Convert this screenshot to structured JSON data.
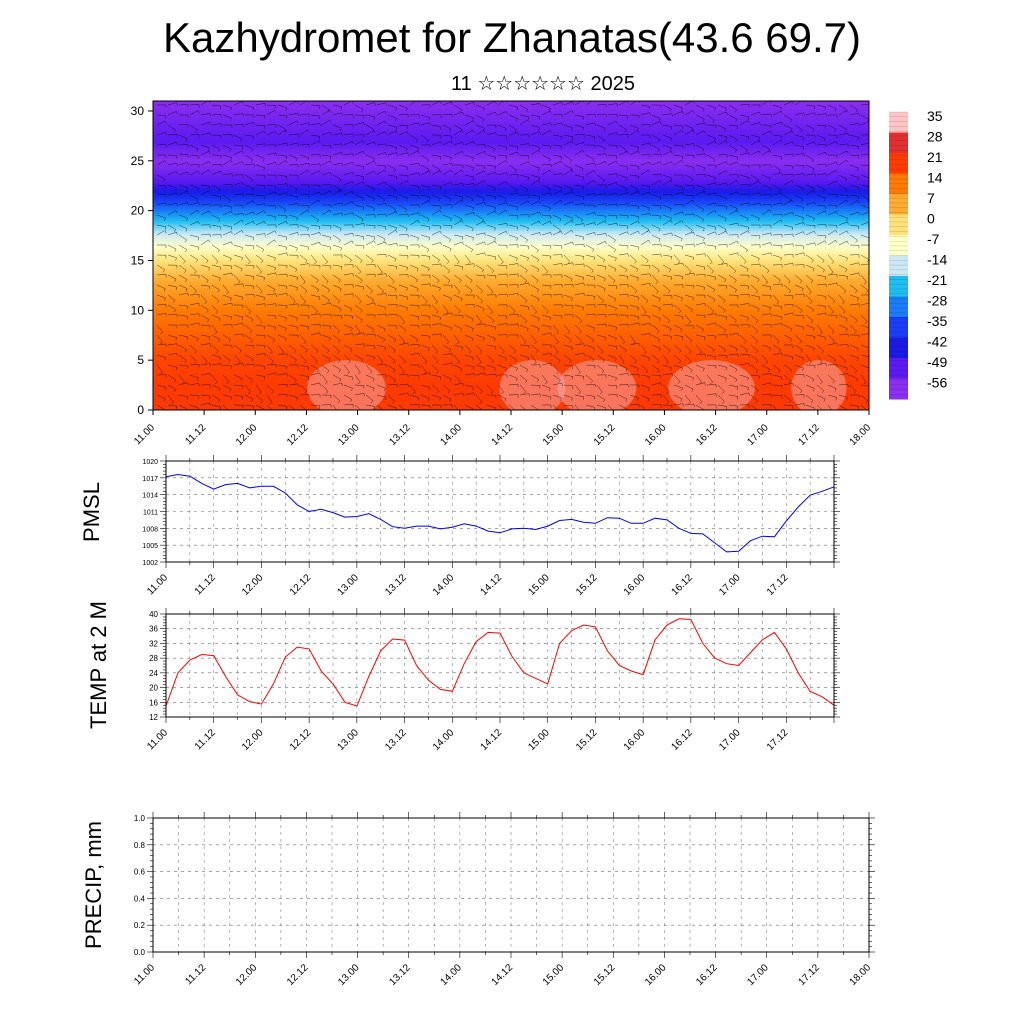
{
  "title": "Kazhydromet for Zhanatas(43.6 69.7)",
  "subtitle": "11 ☆☆☆☆☆☆ 2025",
  "time_ticks": [
    "11.00",
    "11.12",
    "12.00",
    "12.12",
    "13.00",
    "13.12",
    "14.00",
    "14.12",
    "15.00",
    "15.12",
    "16.00",
    "16.12",
    "17.00",
    "17.12",
    "18.00"
  ],
  "chart_data": [
    {
      "type": "heatmap",
      "title": "",
      "xlabel": "",
      "ylabel": "",
      "ylim": [
        0,
        31
      ],
      "yticks": [
        0,
        5,
        10,
        15,
        20,
        25,
        30
      ],
      "colorbar": {
        "labels": [
          "35",
          "28",
          "21",
          "14",
          "7",
          "0",
          "-7",
          "-14",
          "-21",
          "-28",
          "-35",
          "-42",
          "-49",
          "-56"
        ],
        "colors": [
          "#fcc4c4",
          "#e23030",
          "#ff3b00",
          "#ff7a00",
          "#ffab30",
          "#ffe27a",
          "#ffffc8",
          "#cce8f6",
          "#1fbef0",
          "#1a7ef8",
          "#1a3ef6",
          "#1a1ae6",
          "#5a1af0",
          "#8a2ef0"
        ]
      },
      "temperature_profile": [
        {
          "height": 0,
          "temp": 22
        },
        {
          "height": 5,
          "temp": 20
        },
        {
          "height": 10,
          "temp": 14
        },
        {
          "height": 13,
          "temp": 7
        },
        {
          "height": 15,
          "temp": 0
        },
        {
          "height": 17,
          "temp": -10
        },
        {
          "height": 19,
          "temp": -21
        },
        {
          "height": 21,
          "temp": -35
        },
        {
          "height": 23,
          "temp": -49
        },
        {
          "height": 25,
          "temp": -56
        },
        {
          "height": 27,
          "temp": -49
        },
        {
          "height": 31,
          "temp": -56
        }
      ],
      "wind_barbs": true
    },
    {
      "type": "line",
      "ylabel": "PMSL",
      "ylim": [
        1002,
        1020
      ],
      "yticks": [
        1002,
        1005,
        1008,
        1011,
        1014,
        1017,
        1020
      ],
      "series": [
        {
          "color": "#0000ff",
          "values": [
            1017.2,
            1017.6,
            1017.3,
            1016,
            1015,
            1015.8,
            1016,
            1015.2,
            1015.5,
            1015.5,
            1014.3,
            1012.2,
            1011,
            1011.4,
            1010.8,
            1010,
            1010.1,
            1010.6,
            1009.6,
            1008.3,
            1008,
            1008.4,
            1008.4,
            1007.9,
            1008.2,
            1008.8,
            1008.4,
            1007.5,
            1007.2,
            1007.9,
            1008,
            1007.8,
            1008.4,
            1009.4,
            1009.6,
            1009.1,
            1008.9,
            1009.9,
            1009.8,
            1008.9,
            1008.9,
            1009.8,
            1009.5,
            1008,
            1007.1,
            1007,
            1005.4,
            1003.8,
            1003.9,
            1005.8,
            1006.6,
            1006.5,
            1009.3,
            1011.8,
            1013.9,
            1014.6,
            1015.4
          ]
        }
      ]
    },
    {
      "type": "line",
      "ylabel": "TEMP at 2 M",
      "ylim": [
        12,
        40
      ],
      "yticks": [
        12,
        16,
        20,
        24,
        28,
        32,
        36,
        40
      ],
      "series": [
        {
          "color": "#ff0000",
          "values": [
            15,
            24,
            27.5,
            29,
            28.7,
            23,
            18,
            16.2,
            15.5,
            21,
            28.3,
            31,
            30.5,
            24.5,
            21,
            16,
            15,
            23,
            30,
            33.2,
            32.9,
            26,
            22,
            19.5,
            19,
            26.5,
            32.5,
            35,
            34.8,
            28.5,
            24,
            22.5,
            21,
            32,
            35.5,
            37,
            36.5,
            30,
            26,
            24.5,
            23.5,
            33,
            37,
            38.7,
            38.5,
            32,
            28,
            26.5,
            26,
            29.5,
            33,
            35,
            30.5,
            24,
            19,
            17.5,
            15.2
          ]
        }
      ]
    },
    {
      "type": "line",
      "ylabel": "PRECIP, mm",
      "ylim": [
        0,
        1
      ],
      "yticks": [
        "0.0",
        "0.2",
        "0.4",
        "0.6",
        "0.8",
        "1.0"
      ],
      "series": [
        {
          "color": "#006000",
          "values": [
            0,
            0,
            0,
            0,
            0,
            0,
            0,
            0,
            0,
            0,
            0,
            0,
            0,
            0,
            0,
            0,
            0,
            0,
            0,
            0,
            0,
            0,
            0,
            0,
            0,
            0,
            0,
            0,
            0,
            0,
            0,
            0,
            0,
            0,
            0,
            0,
            0,
            0,
            0,
            0,
            0,
            0,
            0,
            0,
            0,
            0,
            0,
            0,
            0,
            0,
            0,
            0,
            0,
            0,
            0,
            0,
            0
          ]
        }
      ]
    }
  ]
}
